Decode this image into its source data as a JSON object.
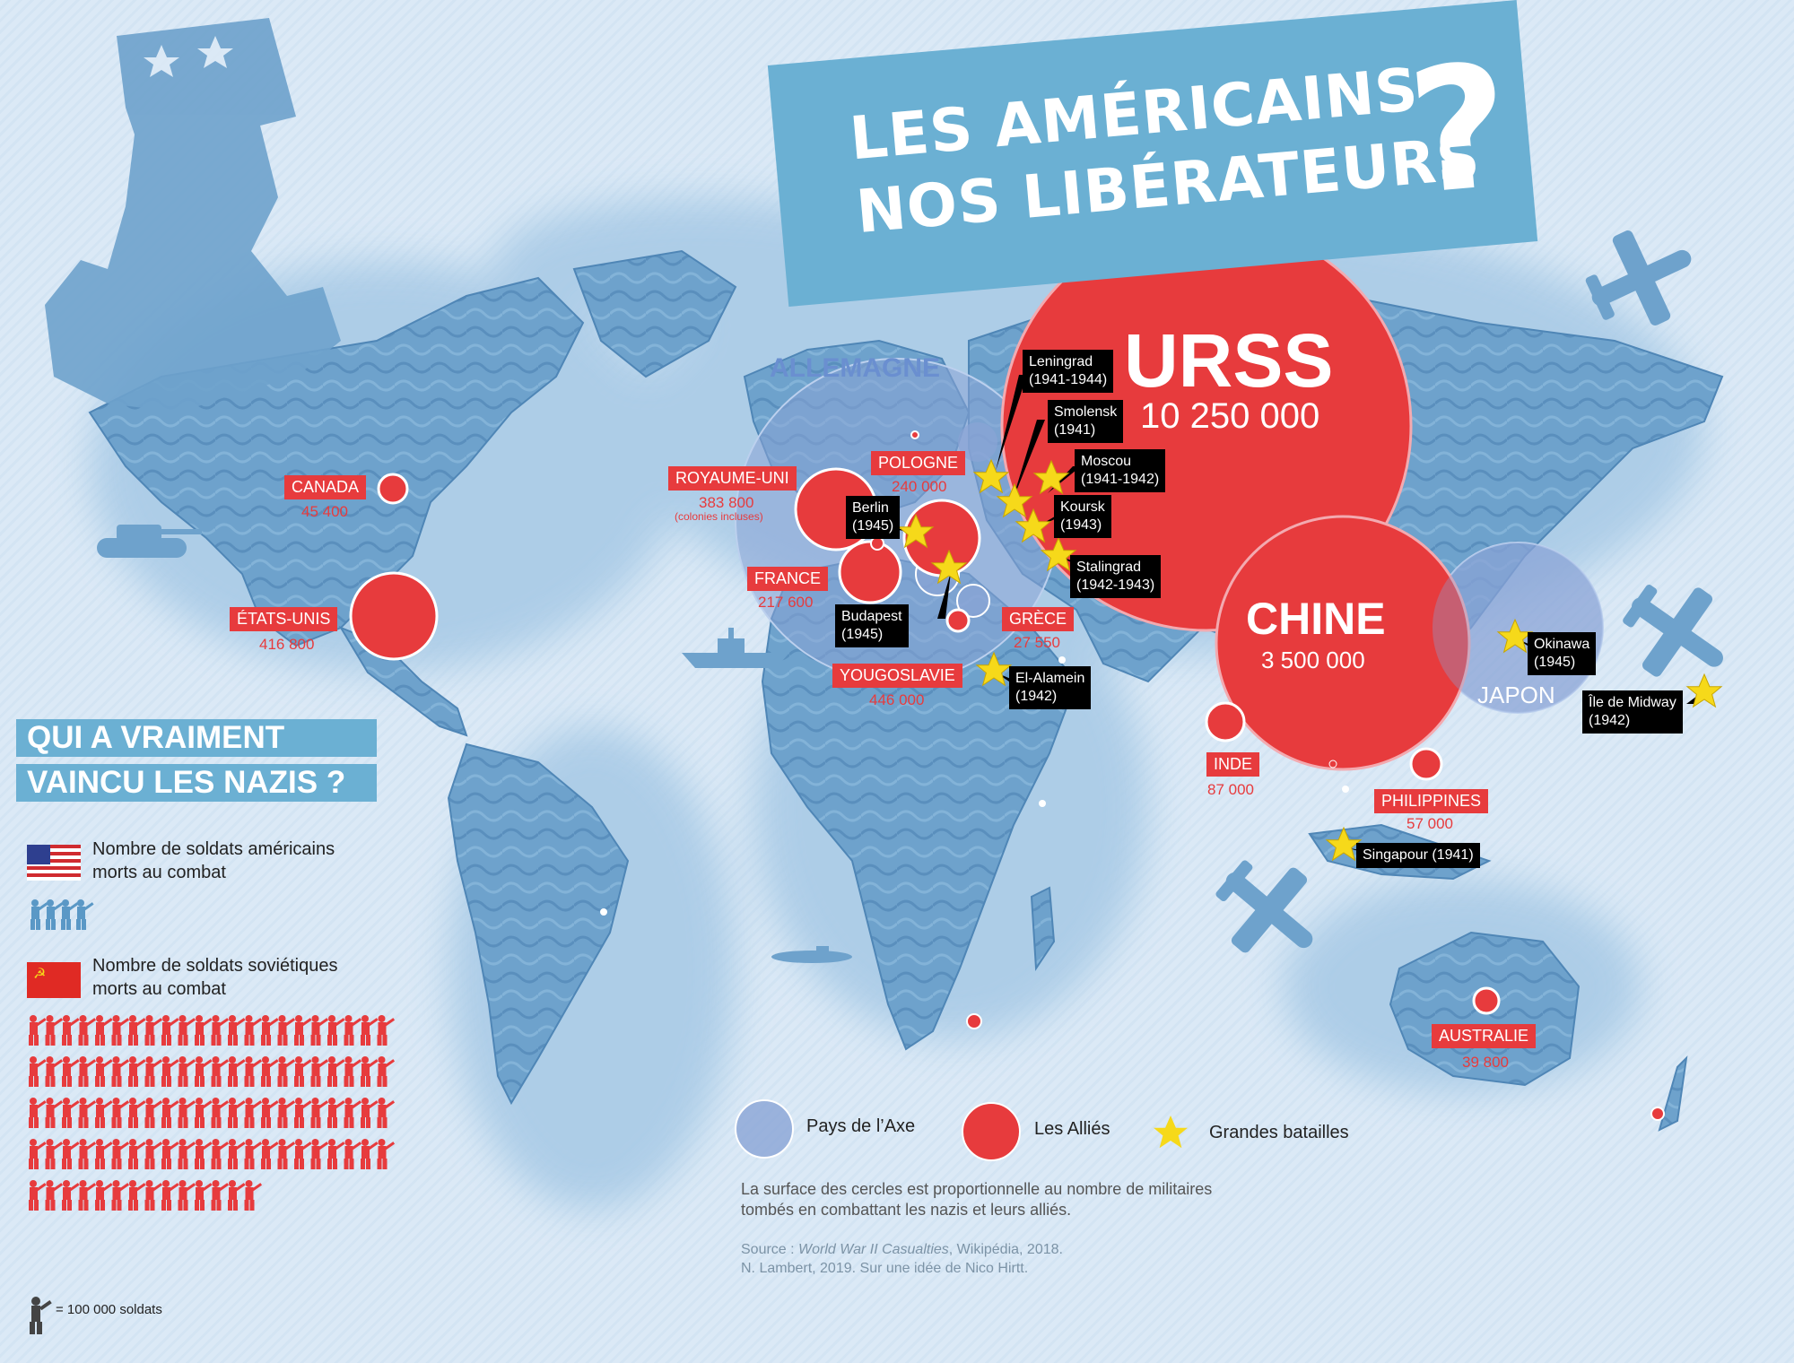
{
  "title": {
    "line1": "LES AMÉRICAINS",
    "line2": "NOS LIBÉRATEURS",
    "mark": "?"
  },
  "subtitle": {
    "line1": "QUI A VRAIMENT",
    "line2": "VAINCU LES NAZIS ?"
  },
  "legend_units": {
    "us_label": "Nombre de soldats américains\nmorts au combat",
    "us_label_1": "Nombre de soldats américains",
    "us_label_2": "morts au combat",
    "ussr_label_1": "Nombre de soldats soviétiques",
    "ussr_label_2": "morts au combat",
    "unit_label": "= 100 000 soldats",
    "us_icons": 4,
    "ussr_icons": 102
  },
  "axis_label": "ALLEMAGNE",
  "japan_label": "JAPON",
  "big_circles": {
    "urss": {
      "name": "URSS",
      "value": "10 250 000"
    },
    "chine": {
      "name": "CHINE",
      "value": "3 500 000"
    }
  },
  "countries": [
    {
      "id": "canada",
      "name": "CANADA",
      "value": "45 400"
    },
    {
      "id": "etats-unis",
      "name": "ÉTATS-UNIS",
      "value": "416 800"
    },
    {
      "id": "royaume-uni",
      "name": "ROYAUME-UNI",
      "value": "383 800",
      "note": "(colonies incluses)"
    },
    {
      "id": "france",
      "name": "FRANCE",
      "value": "217 600"
    },
    {
      "id": "pologne",
      "name": "POLOGNE",
      "value": "240 000"
    },
    {
      "id": "yougoslavie",
      "name": "YOUGOSLAVIE",
      "value": "446 000"
    },
    {
      "id": "grece",
      "name": "GRÈCE",
      "value": "27 550"
    },
    {
      "id": "inde",
      "name": "INDE",
      "value": "87 000"
    },
    {
      "id": "philippines",
      "name": "PHILIPPINES",
      "value": "57 000"
    },
    {
      "id": "australie",
      "name": "AUSTRALIE",
      "value": "39 800"
    }
  ],
  "battles": [
    {
      "id": "leningrad",
      "name": "Leningrad",
      "year": "(1941-1944)"
    },
    {
      "id": "smolensk",
      "name": "Smolensk",
      "year": "(1941)"
    },
    {
      "id": "moscou",
      "name": "Moscou",
      "year": "(1941-1942)"
    },
    {
      "id": "koursk",
      "name": "Koursk",
      "year": "(1943)"
    },
    {
      "id": "stalingrad",
      "name": "Stalingrad",
      "year": "(1942-1943)"
    },
    {
      "id": "berlin",
      "name": "Berlin",
      "year": "(1945)"
    },
    {
      "id": "budapest",
      "name": "Budapest",
      "year": "(1945)"
    },
    {
      "id": "el-alamein",
      "name": "El-Alamein",
      "year": "(1942)"
    },
    {
      "id": "okinawa",
      "name": "Okinawa",
      "year": "(1945)"
    },
    {
      "id": "midway",
      "name": "Île de Midway",
      "year": "(1942)"
    },
    {
      "id": "singapour",
      "name": "Singapour (1941)",
      "year": ""
    }
  ],
  "map_legend": {
    "axis": "Pays de l’Axe",
    "allies": "Les Alliés",
    "battles": "Grandes batailles",
    "note_1": "La surface des cercles est proportionnelle au nombre de militaires",
    "note_2": "tombés en combattant les nazis et leurs alliés.",
    "source_prefix": "Source : ",
    "source_title": "World War II Casualties",
    "source_suffix": ", Wikipédia, 2018.",
    "credit": "N. Lambert, 2019. Sur une idée de Nico Hirtt."
  },
  "colors": {
    "ally_red": "#e73b3d",
    "axis_blue": "#8aa4d6",
    "star_yellow": "#f6d91a",
    "banner_blue": "#6bb0d3",
    "land_blue": "#6ea2cc"
  },
  "icons": [
    "uncle-sam-illustration",
    "tank-icon",
    "ship-icon",
    "submarine-icon",
    "plane-icon",
    "us-flag-icon",
    "ussr-flag-icon",
    "soldier-icon",
    "star-icon"
  ]
}
